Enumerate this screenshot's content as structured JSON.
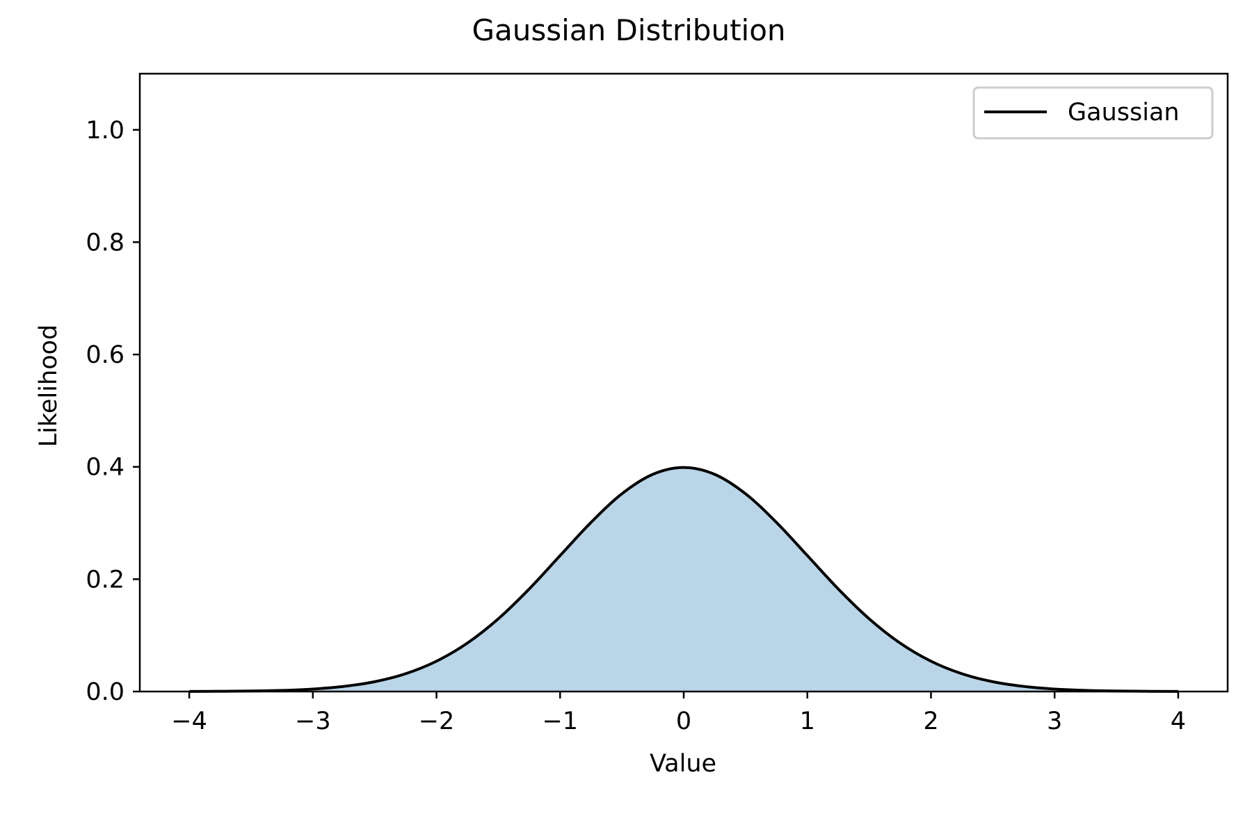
{
  "chart_data": {
    "type": "area",
    "title": "Gaussian Distribution",
    "xlabel": "Value",
    "ylabel": "Likelihood",
    "xlim": [
      -4.4,
      4.4
    ],
    "ylim": [
      0.0,
      1.1
    ],
    "xticks": [
      -4,
      -3,
      -2,
      -1,
      0,
      1,
      2,
      3,
      4
    ],
    "xtick_labels": [
      "−4",
      "−3",
      "−2",
      "−1",
      "0",
      "1",
      "2",
      "3",
      "4"
    ],
    "yticks": [
      0.0,
      0.2,
      0.4,
      0.6,
      0.8,
      1.0
    ],
    "ytick_labels": [
      "0.0",
      "0.2",
      "0.4",
      "0.6",
      "0.8",
      "1.0"
    ],
    "grid": false,
    "legend_position": "top-right",
    "series": [
      {
        "name": "Gaussian",
        "color": "#000000",
        "fill_color": "#bad5e8",
        "x": [
          -4.0,
          -3.75,
          -3.5,
          -3.25,
          -3.0,
          -2.75,
          -2.5,
          -2.25,
          -2.0,
          -1.75,
          -1.5,
          -1.25,
          -1.0,
          -0.75,
          -0.5,
          -0.25,
          0.0,
          0.25,
          0.5,
          0.75,
          1.0,
          1.25,
          1.5,
          1.75,
          2.0,
          2.25,
          2.5,
          2.75,
          3.0,
          3.25,
          3.5,
          3.75,
          4.0
        ],
        "y": [
          0.0001,
          0.0004,
          0.0009,
          0.002,
          0.0044,
          0.0091,
          0.0175,
          0.0317,
          0.054,
          0.0863,
          0.1295,
          0.1826,
          0.242,
          0.3011,
          0.3521,
          0.3867,
          0.3989,
          0.3867,
          0.3521,
          0.3011,
          0.242,
          0.1826,
          0.1295,
          0.0863,
          0.054,
          0.0317,
          0.0175,
          0.0091,
          0.0044,
          0.002,
          0.0009,
          0.0004,
          0.0001
        ]
      }
    ]
  }
}
